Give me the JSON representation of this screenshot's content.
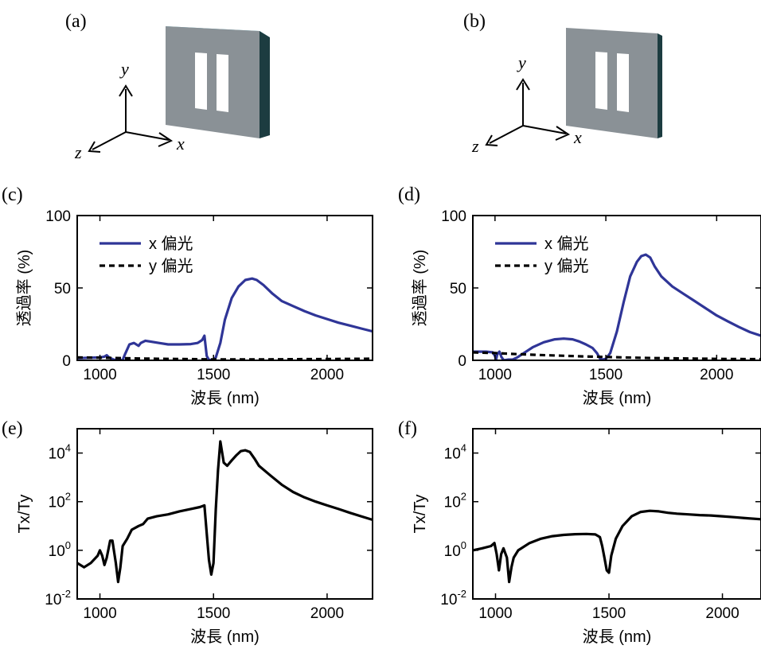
{
  "figure": {
    "panel_labels": [
      "(a)",
      "(b)",
      "(c)",
      "(d)",
      "(e)",
      "(f)"
    ],
    "axis_letters": {
      "x": "x",
      "y": "y",
      "z": "z"
    },
    "colors": {
      "x_pol": "#2f3597",
      "y_pol": "#000000",
      "ratio": "#000000",
      "slab_face": "#8a9196",
      "slab_top": "#5ec6dc",
      "slab_side": "#1c3c40"
    }
  },
  "chart_data": [
    {
      "id": "c",
      "type": "line",
      "xlabel": "波長 (nm)",
      "ylabel": "透過率 (%)",
      "xlim": [
        900,
        2200
      ],
      "ylim": [
        0,
        100
      ],
      "xticks": [
        1000,
        1500,
        2000
      ],
      "yticks": [
        0,
        50,
        100
      ],
      "legend": "top-left",
      "series": [
        {
          "name": "x 偏光",
          "style": "solid",
          "x": [
            900,
            960,
            1000,
            1020,
            1030,
            1040,
            1060,
            1080,
            1100,
            1110,
            1130,
            1150,
            1170,
            1180,
            1200,
            1220,
            1260,
            1300,
            1350,
            1400,
            1430,
            1450,
            1460,
            1470,
            1480,
            1500,
            1510,
            1530,
            1550,
            1580,
            1610,
            1640,
            1670,
            1690,
            1720,
            1760,
            1800,
            1850,
            1900,
            1950,
            2000,
            2050,
            2100,
            2150,
            2200
          ],
          "y": [
            1.5,
            1.8,
            2,
            2.5,
            3.5,
            2,
            0.5,
            0,
            0.2,
            4,
            11,
            12,
            10,
            12,
            13.5,
            13,
            12,
            11,
            11,
            11.2,
            12,
            14,
            17,
            3,
            0.3,
            0.3,
            2,
            12,
            28,
            43,
            51,
            55.5,
            56.5,
            55.5,
            52,
            46,
            41,
            37.5,
            34,
            31,
            28.5,
            26,
            24,
            22,
            20
          ]
        },
        {
          "name": "y 偏光",
          "style": "dashed",
          "x": [
            900,
            1000,
            1100,
            1200,
            1300,
            1400,
            1500,
            1600,
            1700,
            1800,
            1900,
            2000,
            2100,
            2200
          ],
          "y": [
            2,
            1.8,
            1.5,
            1.2,
            1,
            0.8,
            0.6,
            0.6,
            0.6,
            0.7,
            0.8,
            0.9,
            1,
            1.1
          ]
        }
      ]
    },
    {
      "id": "d",
      "type": "line",
      "xlabel": "波長 (nm)",
      "ylabel": "透過率 (%)",
      "xlim": [
        900,
        2200
      ],
      "ylim": [
        0,
        100
      ],
      "xticks": [
        1000,
        1500,
        2000
      ],
      "yticks": [
        0,
        50,
        100
      ],
      "legend": "top-left",
      "series": [
        {
          "name": "x 偏光",
          "style": "solid",
          "x": [
            900,
            960,
            990,
            1000,
            1005,
            1010,
            1020,
            1030,
            1040,
            1060,
            1080,
            1100,
            1130,
            1170,
            1220,
            1270,
            1310,
            1350,
            1380,
            1410,
            1440,
            1460,
            1475,
            1485,
            1500,
            1520,
            1550,
            1580,
            1610,
            1640,
            1660,
            1680,
            1700,
            1720,
            1750,
            1800,
            1850,
            1900,
            1950,
            2000,
            2050,
            2100,
            2150,
            2200
          ],
          "y": [
            6,
            6,
            5.5,
            3,
            0.5,
            4,
            6,
            2,
            0,
            0.5,
            0.5,
            2,
            5,
            9,
            12.5,
            14.5,
            15,
            14.5,
            13,
            11,
            8.5,
            5,
            1,
            0.5,
            1,
            5,
            20,
            40,
            58,
            68,
            72,
            73,
            71,
            65,
            58,
            51,
            46,
            41,
            36,
            31,
            27,
            23,
            19.5,
            17
          ]
        },
        {
          "name": "y 偏光",
          "style": "dashed",
          "x": [
            900,
            1000,
            1100,
            1200,
            1300,
            1400,
            1500,
            1600,
            1700,
            1800,
            1900,
            2000,
            2100,
            2200
          ],
          "y": [
            5.5,
            5,
            4.3,
            3.7,
            3.2,
            2.7,
            2.3,
            1.9,
            1.6,
            1.4,
            1.2,
            1,
            0.9,
            0.8
          ]
        }
      ]
    },
    {
      "id": "e",
      "type": "line",
      "xlabel": "波長 (nm)",
      "ylabel": "Tx/Ty",
      "yscale": "log",
      "xlim": [
        900,
        2200
      ],
      "ylim": [
        0.01,
        100000
      ],
      "xticks": [
        1000,
        1500,
        2000
      ],
      "yticks": [
        0.01,
        1,
        100,
        10000
      ],
      "ytick_labels": [
        {
          "base": "10",
          "exp": "-2"
        },
        {
          "base": "10",
          "exp": "0"
        },
        {
          "base": "10",
          "exp": "2"
        },
        {
          "base": "10",
          "exp": "4"
        }
      ],
      "series": [
        {
          "name": "",
          "style": "solid",
          "x": [
            900,
            930,
            960,
            990,
            1000,
            1010,
            1020,
            1030,
            1045,
            1055,
            1070,
            1080,
            1090,
            1100,
            1120,
            1140,
            1170,
            1190,
            1210,
            1250,
            1300,
            1350,
            1400,
            1440,
            1460,
            1470,
            1480,
            1490,
            1500,
            1510,
            1520,
            1530,
            1545,
            1560,
            1580,
            1600,
            1620,
            1640,
            1660,
            1680,
            1700,
            1750,
            1800,
            1850,
            1900,
            1950,
            2000,
            2050,
            2100,
            2150,
            2200
          ],
          "y": [
            0.3,
            0.2,
            0.3,
            0.6,
            1,
            0.6,
            0.25,
            0.5,
            2.5,
            2.5,
            0.3,
            0.05,
            0.2,
            1.5,
            3,
            7,
            10,
            12,
            20,
            25,
            30,
            40,
            50,
            60,
            70,
            5,
            0.4,
            0.1,
            0.3,
            50,
            2000,
            30000,
            4000,
            3000,
            5000,
            8000,
            12000,
            13000,
            11000,
            6000,
            3000,
            1200,
            500,
            250,
            150,
            100,
            70,
            50,
            35,
            25,
            18
          ]
        }
      ]
    },
    {
      "id": "f",
      "type": "line",
      "xlabel": "波長 (nm)",
      "ylabel": "Tx/Ty",
      "yscale": "log",
      "xlim": [
        900,
        2170
      ],
      "ylim": [
        0.01,
        100000
      ],
      "xticks": [
        1000,
        1500,
        2000
      ],
      "yticks": [
        0.01,
        1,
        100,
        10000
      ],
      "ytick_labels": [
        {
          "base": "10",
          "exp": "-2"
        },
        {
          "base": "10",
          "exp": "0"
        },
        {
          "base": "10",
          "exp": "2"
        },
        {
          "base": "10",
          "exp": "4"
        }
      ],
      "series": [
        {
          "name": "",
          "style": "solid",
          "x": [
            900,
            940,
            980,
            995,
            1005,
            1015,
            1025,
            1035,
            1050,
            1060,
            1070,
            1080,
            1100,
            1150,
            1200,
            1250,
            1300,
            1350,
            1400,
            1440,
            1460,
            1470,
            1480,
            1490,
            1500,
            1510,
            1530,
            1560,
            1600,
            1640,
            1680,
            1720,
            1760,
            1800,
            1850,
            1900,
            1950,
            2000,
            2050,
            2100,
            2170
          ],
          "y": [
            1,
            1.2,
            1.5,
            2,
            0.7,
            0.15,
            0.7,
            1.2,
            0.5,
            0.05,
            0.2,
            0.5,
            1,
            2,
            3,
            3.8,
            4.3,
            4.6,
            4.7,
            4.5,
            3.5,
            1.5,
            0.5,
            0.15,
            0.12,
            0.6,
            3,
            10,
            25,
            38,
            42,
            40,
            35,
            32,
            30,
            28,
            27,
            25,
            23,
            21,
            19
          ]
        }
      ]
    }
  ]
}
